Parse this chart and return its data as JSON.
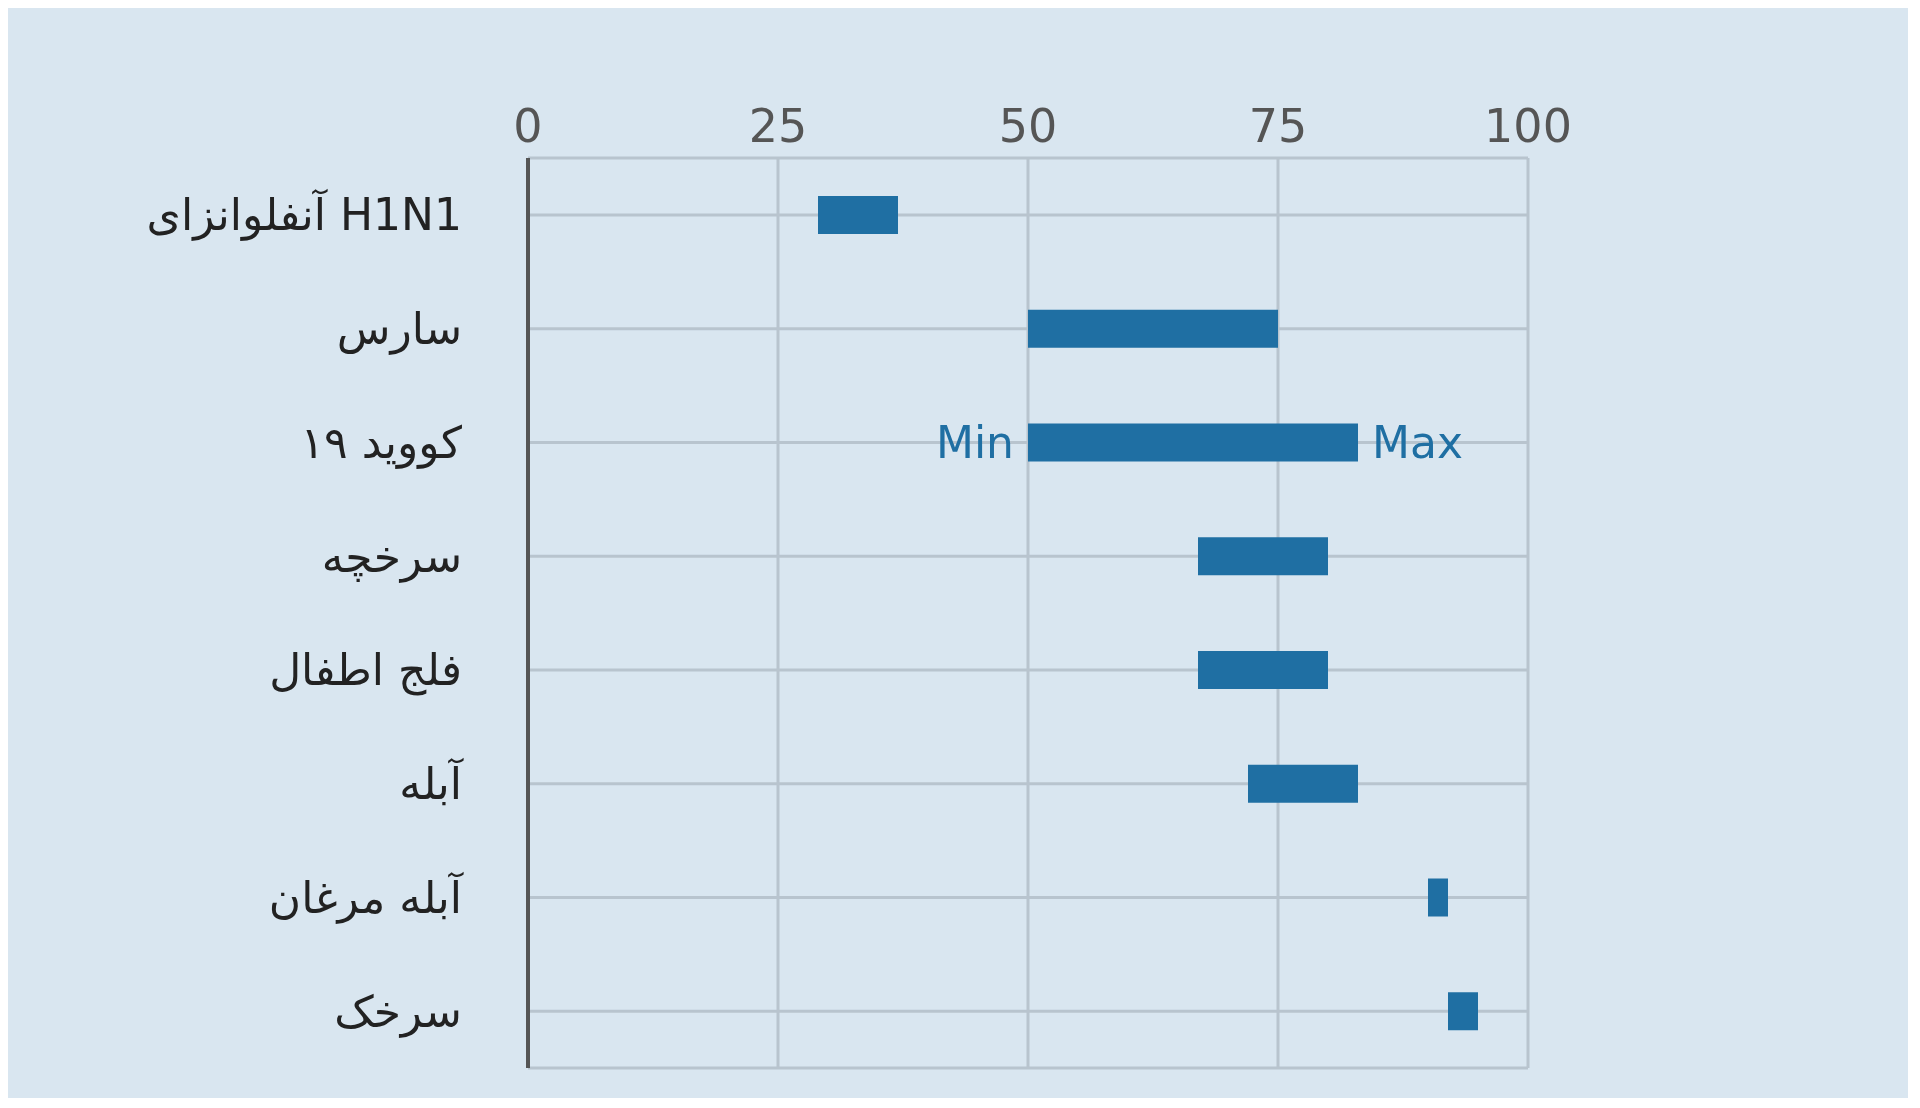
{
  "chart_data": {
    "type": "bar",
    "orientation": "horizontal",
    "categories": [
      "آنفلوانزای H1N1",
      "سارس",
      "کووید ۱۹",
      "سرخچه",
      "فلج اطفال",
      "آبله",
      "آبله مرغان",
      "سرخک"
    ],
    "base": [
      29,
      50,
      50,
      67,
      67,
      72,
      90,
      92
    ],
    "values": [
      8,
      25,
      33,
      13,
      13,
      11,
      2,
      3
    ],
    "color": "#1f6fa3",
    "xlim": [
      0,
      100
    ],
    "xticks": [
      0,
      25,
      50,
      75,
      100
    ],
    "grid": true,
    "annotations": [
      {
        "text": "Min",
        "x": 50,
        "y": "کووید ۱۹"
      },
      {
        "text": "Max",
        "x": 83,
        "y": "کووید ۱۹"
      }
    ]
  }
}
